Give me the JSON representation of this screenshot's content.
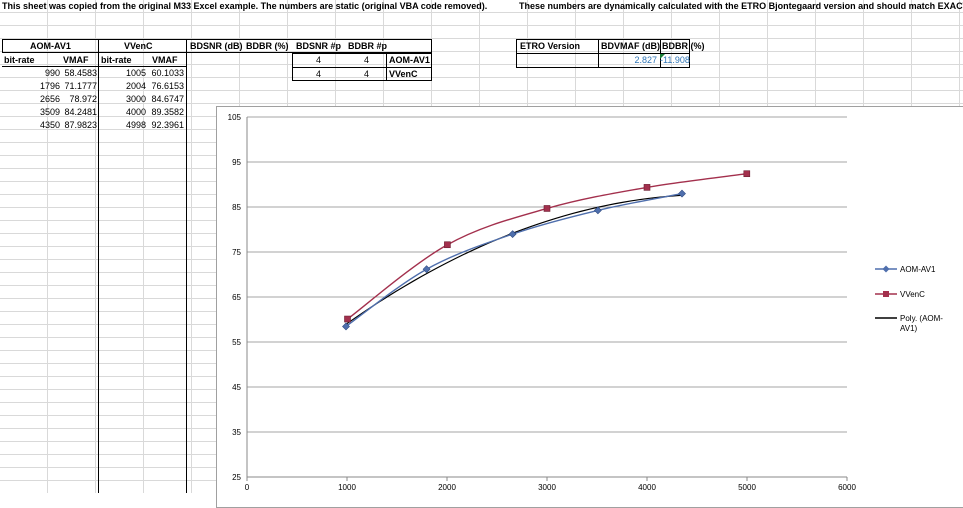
{
  "header": {
    "left_note": "This sheet was copied from the original M33 Excel example. The numbers are static (original VBA code removed).",
    "right_note": "These numbers are dynamically calculated with the ETRO Bjontegaard version and should match EXACTL"
  },
  "table": {
    "codec1": "AOM-AV1",
    "codec2": "VVenC",
    "col_bitrate": "bit-rate",
    "col_vmaf": "VMAF",
    "col_bdsnr": "BDSNR (dB)",
    "col_bdbr": "BDBR (%)",
    "col_bdsnr_p": "BDSNR #p",
    "col_bdbr_p": "BDBR #p",
    "rows": [
      {
        "br1": "990",
        "v1": "58.4583",
        "br2": "1005",
        "v2": "60.1033"
      },
      {
        "br1": "1796",
        "v1": "71.1777",
        "br2": "2004",
        "v2": "76.6153"
      },
      {
        "br1": "2656",
        "v1": "78.972",
        "br2": "3000",
        "v2": "84.6747"
      },
      {
        "br1": "3509",
        "v1": "84.2481",
        "br2": "4000",
        "v2": "89.3582"
      },
      {
        "br1": "4350",
        "v1": "87.9823",
        "br2": "4998",
        "v2": "92.3961"
      }
    ],
    "p_rows": [
      {
        "bdsnr_p": "4",
        "bdbr_p": "4",
        "name": "AOM-AV1"
      },
      {
        "bdsnr_p": "4",
        "bdbr_p": "4",
        "name": "VVenC"
      }
    ]
  },
  "etro": {
    "col_version": "ETRO Version",
    "col_bdvmaf": "BDVMAF (dB)",
    "col_bdbr": "BDBR (%)",
    "bdvmaf": "2.827",
    "bdbr": "-11.908"
  },
  "chart_data": {
    "type": "scatter",
    "xlim": [
      0,
      6000
    ],
    "ylim": [
      25,
      105
    ],
    "x_ticks": [
      "0",
      "1000",
      "2000",
      "3000",
      "4000",
      "5000",
      "6000"
    ],
    "y_ticks": [
      "25",
      "35",
      "45",
      "55",
      "65",
      "75",
      "85",
      "95",
      "105"
    ],
    "grid": true,
    "legend_position": "right",
    "series": [
      {
        "name": "AOM-AV1",
        "color": "#4f6fad",
        "marker": "diamond",
        "x": [
          990,
          1796,
          2656,
          3509,
          4350
        ],
        "y": [
          58.4583,
          71.1777,
          78.972,
          84.2481,
          87.9823
        ]
      },
      {
        "name": "VVenC",
        "color": "#a3304d",
        "marker": "square",
        "x": [
          1005,
          2004,
          3000,
          4000,
          4998
        ],
        "y": [
          60.1033,
          76.6153,
          84.6747,
          89.3582,
          92.3961
        ]
      }
    ],
    "trendline": {
      "name": "Poly. (AOM-AV1)",
      "color": "#000000"
    }
  }
}
